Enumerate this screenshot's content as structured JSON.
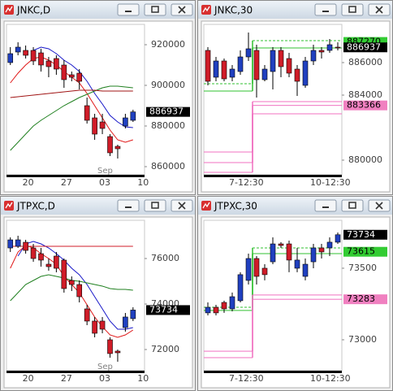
{
  "chart_data": [
    {
      "type": "candlestick",
      "title": "JNKC,D",
      "month_label": "Sep",
      "categories": [
        null,
        null,
        "20",
        null,
        null,
        null,
        null,
        "27",
        null,
        null,
        null,
        null,
        "03",
        null,
        null,
        null,
        null,
        "10"
      ],
      "ohlc": [
        [
          911200,
          918800,
          910000,
          915600
        ],
        [
          916400,
          921200,
          914800,
          918800
        ],
        [
          917200,
          919600,
          913200,
          914800
        ],
        [
          917200,
          918800,
          910000,
          912000
        ],
        [
          916000,
          918000,
          906800,
          910000
        ],
        [
          912000,
          914000,
          904000,
          909200
        ],
        [
          913200,
          914800,
          905200,
          908000
        ],
        [
          910000,
          912400,
          898800,
          902800
        ],
        [
          905200,
          906800,
          902000,
          904000
        ],
        [
          906000,
          908000,
          898000,
          902000
        ],
        [
          890000,
          894000,
          881200,
          882800
        ],
        [
          884000,
          886000,
          873200,
          876000
        ],
        [
          882000,
          886000,
          876000,
          878800
        ],
        [
          874800,
          876000,
          865200,
          866800
        ],
        [
          870000,
          870800,
          864000,
          868800
        ],
        [
          880000,
          886000,
          878800,
          884000
        ],
        [
          882800,
          888000,
          882000,
          886937
        ],
        null
      ],
      "up_color": "#2040c0",
      "down_color": "#d01c28",
      "step": false,
      "lines": [
        {
          "color": "#1818c8",
          "values": [
            null,
            null,
            null,
            917200,
            918800,
            918000,
            915600,
            912400,
            910000,
            906800,
            902000,
            896000,
            890800,
            885200,
            882000,
            879600,
            879200,
            null
          ]
        },
        {
          "color": "#e01818",
          "values": [
            901200,
            906000,
            910000,
            913200,
            914000,
            912400,
            910000,
            906800,
            904000,
            901200,
            896000,
            890000,
            884000,
            878000,
            873200,
            872000,
            873200,
            null
          ]
        },
        {
          "color": "#208020",
          "values": [
            868000,
            872000,
            876000,
            880000,
            882800,
            885200,
            887600,
            890000,
            892000,
            894000,
            895600,
            897200,
            898800,
            899600,
            899600,
            899200,
            898800,
            null
          ]
        },
        {
          "color": "#a01414",
          "values": [
            894000,
            894400,
            894800,
            895200,
            895600,
            896000,
            896400,
            896800,
            897200,
            897600,
            897600,
            897600,
            897200,
            897200,
            897200,
            897200,
            897200,
            null
          ]
        }
      ],
      "price_tags": [
        {
          "value": 886937,
          "color": "#000000"
        }
      ],
      "ylim": [
        856000,
        930000
      ],
      "yticks": [
        860000,
        880000,
        900000,
        920000
      ]
    },
    {
      "type": "candlestick",
      "title": "JNKC,30",
      "categories": [
        null,
        null,
        null,
        "7-12:30",
        null,
        null,
        null,
        null,
        null,
        null,
        null,
        null,
        null,
        "10-12:30",
        null,
        null,
        null
      ],
      "ohlc": [
        [
          886750,
          886950,
          884600,
          884850
        ],
        [
          885100,
          886350,
          884850,
          886100
        ],
        [
          886100,
          886250,
          884850,
          885000
        ],
        [
          885100,
          885850,
          884850,
          885600
        ],
        [
          885450,
          886750,
          885250,
          886350
        ],
        [
          886350,
          887850,
          886100,
          886850
        ],
        [
          886750,
          887100,
          883850,
          884950
        ],
        [
          884950,
          885850,
          884850,
          885600
        ],
        [
          885450,
          886950,
          884350,
          886750
        ],
        [
          886750,
          886950,
          885100,
          885750
        ],
        [
          886250,
          886600,
          885100,
          885350
        ],
        [
          885600,
          885850,
          883950,
          884850
        ],
        [
          884600,
          886350,
          884450,
          886100
        ],
        [
          886100,
          887100,
          885850,
          886750
        ],
        [
          886750,
          886950,
          886250,
          886650
        ],
        [
          886750,
          887450,
          886600,
          887100
        ],
        [
          886950,
          887250,
          886750,
          886937
        ]
      ],
      "up_color": "#2040c0",
      "down_color": "#d01c28",
      "step": true,
      "lines": [
        {
          "color": "#30c030",
          "dashed": true,
          "values": [
            884700,
            884700,
            884700,
            884700,
            884700,
            884700,
            887350,
            887350,
            887350,
            887350,
            887350,
            887350,
            887350,
            887350,
            887350,
            887350,
            887350
          ]
        },
        {
          "color": "#30c030",
          "values": [
            884250,
            884250,
            884250,
            884250,
            884250,
            884250,
            886900,
            886900,
            886900,
            886900,
            886900,
            886900,
            886900,
            886900,
            886900,
            886900,
            886900
          ]
        },
        {
          "color": "#f070c0",
          "values": [
            880500,
            880500,
            880500,
            880500,
            880500,
            880500,
            883600,
            883600,
            883600,
            883600,
            883600,
            883600,
            883600,
            883600,
            883600,
            883600,
            883600
          ]
        },
        {
          "color": "#f070c0",
          "values": [
            879850,
            879850,
            879850,
            879850,
            879850,
            879850,
            883366,
            883366,
            883366,
            883366,
            883366,
            883366,
            883366,
            883366,
            883366,
            883366,
            883366
          ]
        },
        {
          "color": "#f070c0",
          "values": [
            879250,
            879250,
            879250,
            879250,
            879250,
            879250,
            882850,
            882850,
            882850,
            882850,
            882850,
            882850,
            882850,
            882850,
            882850,
            882850,
            882850
          ]
        }
      ],
      "price_tags": [
        {
          "value": 887270,
          "color": "#33cc33"
        },
        {
          "value": 886937,
          "color": "#000000"
        },
        {
          "value": 883366,
          "color": "#f080c0"
        }
      ],
      "ylim": [
        879100,
        888350
      ],
      "yticks": [
        880000,
        884000,
        886000
      ]
    },
    {
      "type": "candlestick",
      "title": "JTPXC,D",
      "month_label": "Sep",
      "categories": [
        null,
        null,
        "20",
        null,
        null,
        null,
        null,
        "27",
        null,
        null,
        null,
        null,
        "03",
        null,
        null,
        null,
        null,
        "10"
      ],
      "ohlc": [
        [
          76464,
          76929,
          76286,
          76821
        ],
        [
          76536,
          77000,
          76464,
          76821
        ],
        [
          76714,
          76821,
          76214,
          76357
        ],
        [
          76464,
          76643,
          75857,
          76000
        ],
        [
          76214,
          76464,
          75643,
          75929
        ],
        [
          75750,
          76000,
          75464,
          75643
        ],
        [
          76107,
          76286,
          75393,
          75571
        ],
        [
          75929,
          76000,
          74500,
          74679
        ],
        [
          75036,
          75214,
          74571,
          74857
        ],
        [
          74857,
          75036,
          74071,
          74321
        ],
        [
          73786,
          73964,
          73071,
          73250
        ],
        [
          73250,
          73429,
          72536,
          72714
        ],
        [
          73250,
          73429,
          72714,
          72893
        ],
        [
          72429,
          72536,
          71643,
          71821
        ],
        [
          71929,
          72000,
          71464,
          71857
        ],
        [
          72964,
          73607,
          72786,
          73429
        ],
        [
          73357,
          73857,
          73250,
          73734
        ],
        null
      ],
      "up_color": "#2040c0",
      "down_color": "#d01c28",
      "step": false,
      "lines": [
        {
          "color": "#1818c8",
          "values": [
            null,
            76107,
            76643,
            76750,
            76643,
            76464,
            76214,
            75929,
            75571,
            75286,
            74857,
            74321,
            73786,
            73250,
            72893,
            72893,
            72964,
            null
          ]
        },
        {
          "color": "#e01818",
          "values": [
            75571,
            76286,
            76571,
            76464,
            76214,
            76000,
            75750,
            75214,
            74857,
            74500,
            73964,
            73429,
            73000,
            72643,
            72536,
            72643,
            72857,
            null
          ]
        },
        {
          "color": "#208020",
          "values": [
            74143,
            74500,
            74857,
            75036,
            75214,
            75286,
            75214,
            75143,
            75036,
            75000,
            74929,
            74857,
            74786,
            74679,
            74643,
            74643,
            74607,
            null
          ]
        },
        {
          "color": "#d01c28",
          "values": [
            76536,
            76536,
            76536,
            76536,
            76536,
            76536,
            76536,
            76536,
            76536,
            76536,
            76536,
            76536,
            76536,
            76536,
            76536,
            76536,
            76536,
            null
          ]
        }
      ],
      "price_tags": [
        {
          "value": 73734,
          "color": "#000000"
        }
      ],
      "ylim": [
        71070,
        77680
      ],
      "yticks": [
        72000,
        74000,
        76000
      ]
    },
    {
      "type": "candlestick",
      "title": "JTPXC,30",
      "categories": [
        null,
        null,
        null,
        "7-12:30",
        null,
        null,
        null,
        null,
        null,
        null,
        null,
        null,
        null,
        "10-12:30",
        null,
        null,
        null
      ],
      "ohlc": [
        [
          73188,
          73261,
          73170,
          73227
        ],
        [
          73227,
          73244,
          73170,
          73188
        ],
        [
          73261,
          73273,
          73188,
          73216
        ],
        [
          73216,
          73330,
          73199,
          73301
        ],
        [
          73273,
          73472,
          73261,
          73455
        ],
        [
          73415,
          73602,
          73386,
          73568
        ],
        [
          73568,
          73585,
          73386,
          73443
        ],
        [
          73500,
          73528,
          73415,
          73455
        ],
        [
          73545,
          73716,
          73528,
          73670
        ],
        [
          73670,
          73682,
          73642,
          73659
        ],
        [
          73670,
          73693,
          73472,
          73557
        ],
        [
          73500,
          73642,
          73472,
          73557
        ],
        [
          73443,
          73568,
          73415,
          73528
        ],
        [
          73545,
          73670,
          73500,
          73642
        ],
        [
          73642,
          73670,
          73568,
          73614
        ],
        [
          73642,
          73716,
          73585,
          73682
        ],
        [
          73682,
          73750,
          73670,
          73734
        ]
      ],
      "up_color": "#2040c0",
      "down_color": "#d01c28",
      "step": true,
      "lines": [
        {
          "color": "#30c030",
          "dashed": true,
          "values": [
            73227,
            73227,
            73227,
            73227,
            73227,
            73227,
            73642,
            73642,
            73642,
            73642,
            73642,
            73642,
            73642,
            73642,
            73642,
            73642,
            73642
          ]
        },
        {
          "color": "#30c030",
          "values": [
            73205,
            73205,
            73205,
            73205,
            73205,
            73205,
            73602,
            73602,
            73602,
            73602,
            73602,
            73602,
            73602,
            73602,
            73602,
            73602,
            73602
          ]
        },
        {
          "color": "#f070c0",
          "values": [
            72920,
            72920,
            72920,
            72920,
            72920,
            72920,
            73313,
            73313,
            73313,
            73313,
            73313,
            73313,
            73313,
            73313,
            73313,
            73313,
            73313
          ]
        },
        {
          "color": "#f070c0",
          "values": [
            72875,
            72875,
            72875,
            72875,
            72875,
            72875,
            73283,
            73283,
            73283,
            73283,
            73283,
            73283,
            73283,
            73283,
            73283,
            73283,
            73283
          ]
        }
      ],
      "price_tags": [
        {
          "value": 73734,
          "color": "#000000"
        },
        {
          "value": 73615,
          "color": "#33cc33"
        },
        {
          "value": 73283,
          "color": "#f080c0"
        }
      ],
      "ylim": [
        72784,
        73835
      ],
      "yticks": [
        73000,
        73500
      ]
    }
  ]
}
